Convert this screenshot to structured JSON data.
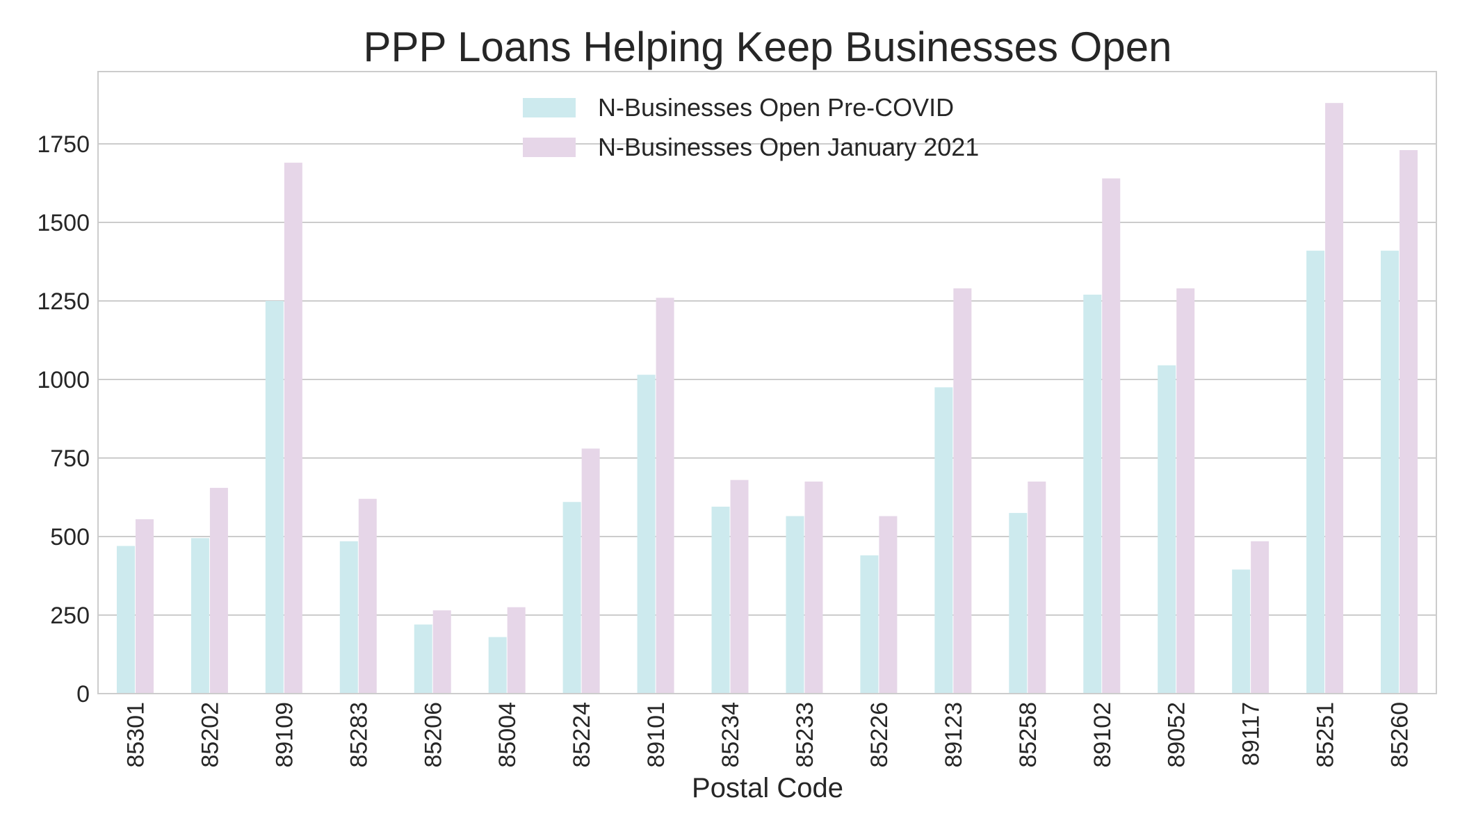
{
  "chart_data": {
    "type": "bar",
    "title": "PPP Loans Helping Keep Businesses Open",
    "xlabel": "Postal Code",
    "ylabel": "",
    "ylim": [
      0,
      1980
    ],
    "yticks": [
      0,
      250,
      500,
      750,
      1000,
      1250,
      1500,
      1750
    ],
    "grid": true,
    "legend_position": "upper-center",
    "categories": [
      "85301",
      "85202",
      "89109",
      "85283",
      "85206",
      "85004",
      "85224",
      "89101",
      "85234",
      "85233",
      "85226",
      "89123",
      "85258",
      "89102",
      "89052",
      "89117",
      "85251",
      "85260"
    ],
    "series": [
      {
        "name": "N-Businesses Open Pre-COVID",
        "color": "#cdeaee",
        "values": [
          470,
          495,
          1250,
          485,
          220,
          180,
          610,
          1015,
          595,
          565,
          440,
          975,
          575,
          1270,
          1045,
          395,
          1410,
          1410
        ]
      },
      {
        "name": "N-Businesses Open January 2021",
        "color": "#e6d6e8",
        "values": [
          555,
          655,
          1690,
          620,
          265,
          275,
          780,
          1260,
          680,
          675,
          565,
          1290,
          675,
          1640,
          1290,
          485,
          1880,
          1730
        ]
      }
    ]
  }
}
